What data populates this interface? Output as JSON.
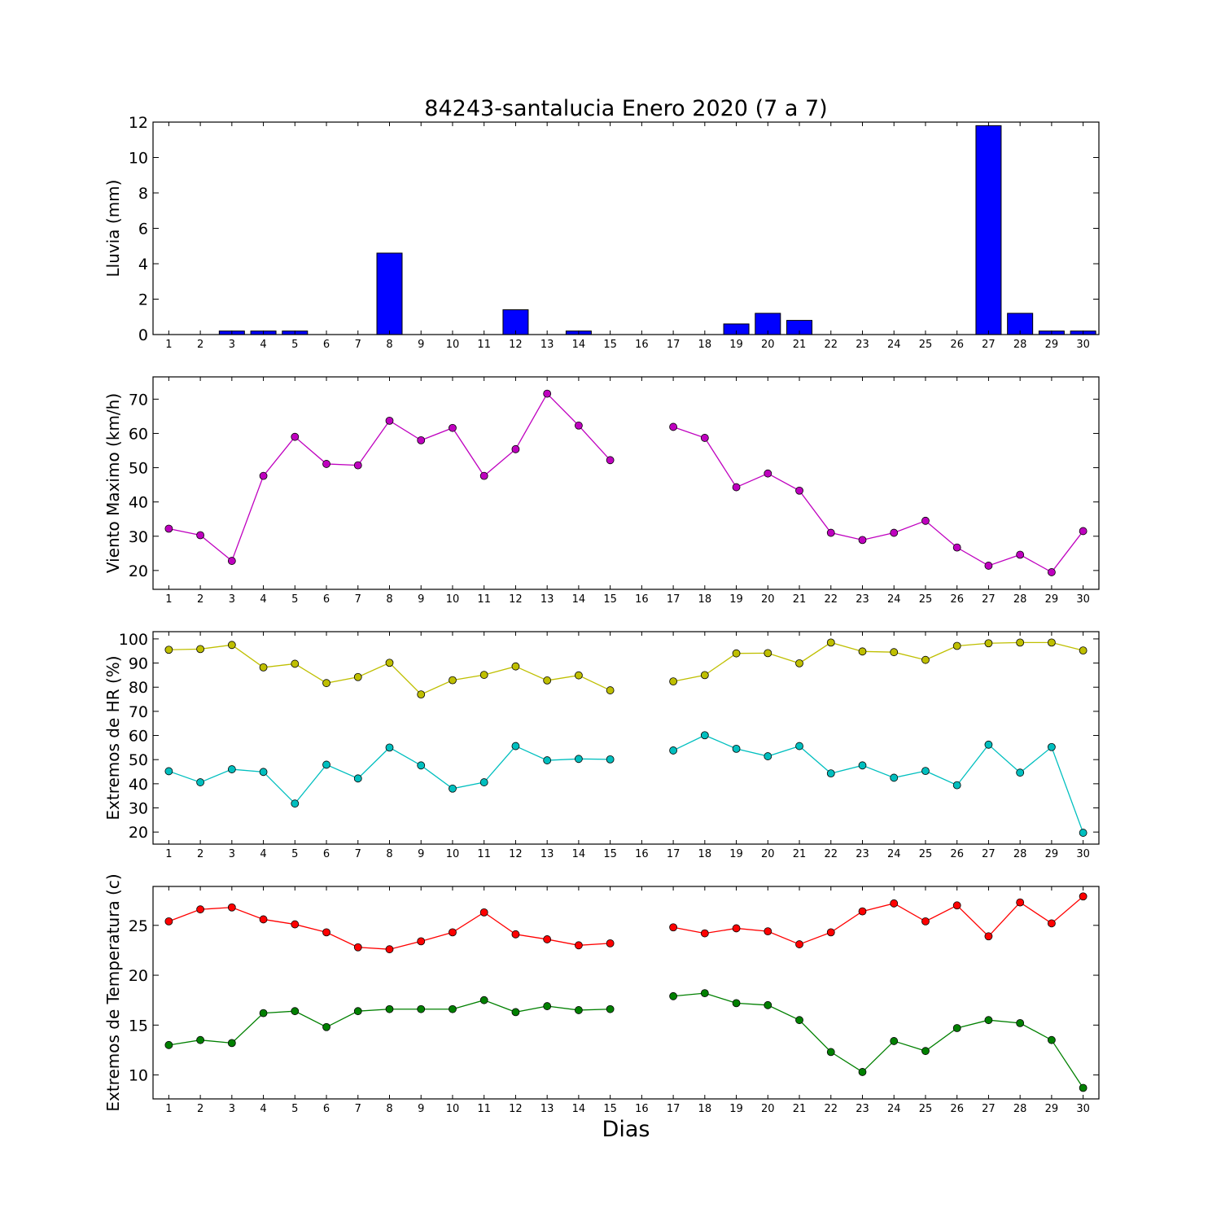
{
  "figure": {
    "title": "84243-santalucia Enero 2020  (7 a 7)",
    "xlabel": "Dias"
  },
  "chart_data": [
    {
      "type": "bar",
      "title": "84243-santalucia Enero 2020  (7 a 7)",
      "xlabel": "",
      "ylabel": "Lluvia (mm)",
      "categories": [
        1,
        2,
        3,
        4,
        5,
        6,
        7,
        8,
        9,
        10,
        11,
        12,
        13,
        14,
        15,
        16,
        17,
        18,
        19,
        20,
        21,
        22,
        23,
        24,
        25,
        26,
        27,
        28,
        29,
        30
      ],
      "values": [
        0,
        0,
        0.2,
        0.2,
        0.2,
        0,
        0,
        4.6,
        0,
        0,
        0,
        1.4,
        0,
        0.2,
        0,
        0,
        0,
        0,
        0.6,
        1.2,
        0.8,
        0,
        0,
        0,
        0,
        0,
        11.8,
        1.2,
        0.2,
        0.2
      ],
      "xlim": [
        0.5,
        30.5
      ],
      "ylim": [
        0,
        12
      ],
      "yticks": [
        0,
        2,
        4,
        6,
        8,
        10,
        12
      ],
      "colors": {
        "bar": "#0000ff"
      },
      "grid": false
    },
    {
      "type": "line",
      "xlabel": "",
      "ylabel": "Viento Maximo (km/h)",
      "x": [
        1,
        2,
        3,
        4,
        5,
        6,
        7,
        8,
        9,
        10,
        11,
        12,
        13,
        14,
        15,
        16,
        17,
        18,
        19,
        20,
        21,
        22,
        23,
        24,
        25,
        26,
        27,
        28,
        29,
        30
      ],
      "series": [
        {
          "values": [
            32.2,
            30.3,
            22.8,
            47.6,
            59.0,
            51.1,
            50.7,
            63.7,
            58.0,
            61.6,
            47.6,
            55.4,
            71.6,
            62.3,
            52.2,
            null,
            61.9,
            58.7,
            44.3,
            48.3,
            43.3,
            31.0,
            28.9,
            31.0,
            34.5,
            26.7,
            21.4,
            24.6,
            19.5,
            31.5
          ],
          "color": "#bf00bf"
        }
      ],
      "xlim": [
        0.5,
        30.5
      ],
      "ylim": [
        14.5,
        76.5
      ],
      "yticks": [
        20,
        30,
        40,
        50,
        60,
        70
      ],
      "grid": false
    },
    {
      "type": "line",
      "xlabel": "",
      "ylabel": "Extremos de HR (%)",
      "x": [
        1,
        2,
        3,
        4,
        5,
        6,
        7,
        8,
        9,
        10,
        11,
        12,
        13,
        14,
        15,
        16,
        17,
        18,
        19,
        20,
        21,
        22,
        23,
        24,
        25,
        26,
        27,
        28,
        29,
        30
      ],
      "series": [
        {
          "values": [
            95.5,
            95.8,
            97.5,
            88.2,
            89.7,
            81.7,
            84.2,
            90.1,
            77.0,
            82.9,
            85.1,
            88.6,
            82.8,
            84.9,
            78.7,
            null,
            82.4,
            85.0,
            94.0,
            94.1,
            89.9,
            98.5,
            94.8,
            94.5,
            91.3,
            97.1,
            98.2,
            98.5,
            98.5,
            95.2
          ],
          "color": "#bfbf00"
        },
        {
          "values": [
            45.2,
            40.6,
            46.0,
            44.9,
            31.8,
            47.9,
            42.2,
            55.0,
            47.6,
            38.0,
            40.6,
            55.6,
            49.7,
            50.3,
            50.1,
            null,
            53.8,
            60.1,
            54.5,
            51.4,
            55.6,
            44.3,
            47.6,
            42.5,
            45.3,
            39.4,
            56.2,
            44.6,
            55.2,
            19.7
          ],
          "color": "#00bfbf"
        }
      ],
      "xlim": [
        0.5,
        30.5
      ],
      "ylim": [
        15,
        103
      ],
      "yticks": [
        20,
        30,
        40,
        50,
        60,
        70,
        80,
        90,
        100
      ],
      "grid": false
    },
    {
      "type": "line",
      "xlabel": "Dias",
      "ylabel": "Extremos de Temperatura (c)",
      "x": [
        1,
        2,
        3,
        4,
        5,
        6,
        7,
        8,
        9,
        10,
        11,
        12,
        13,
        14,
        15,
        16,
        17,
        18,
        19,
        20,
        21,
        22,
        23,
        24,
        25,
        26,
        27,
        28,
        29,
        30
      ],
      "series": [
        {
          "values": [
            25.4,
            26.6,
            26.8,
            25.6,
            25.1,
            24.3,
            22.8,
            22.6,
            23.4,
            24.3,
            26.3,
            24.1,
            23.6,
            23.0,
            23.2,
            null,
            24.8,
            24.2,
            24.7,
            24.4,
            23.1,
            24.3,
            26.4,
            27.2,
            25.4,
            27.0,
            23.9,
            27.3,
            25.2,
            27.9
          ],
          "color": "#ff0000"
        },
        {
          "values": [
            13.0,
            13.5,
            13.2,
            16.2,
            16.4,
            14.8,
            16.4,
            16.6,
            16.6,
            16.6,
            17.5,
            16.3,
            16.9,
            16.5,
            16.6,
            null,
            17.9,
            18.2,
            17.2,
            17.0,
            15.5,
            12.3,
            10.3,
            13.4,
            12.4,
            14.7,
            15.5,
            15.2,
            13.5,
            8.7
          ],
          "color": "#008000"
        }
      ],
      "xlim": [
        0.5,
        30.5
      ],
      "ylim": [
        7.6,
        28.9
      ],
      "yticks": [
        10,
        15,
        20,
        25
      ],
      "grid": false
    }
  ]
}
